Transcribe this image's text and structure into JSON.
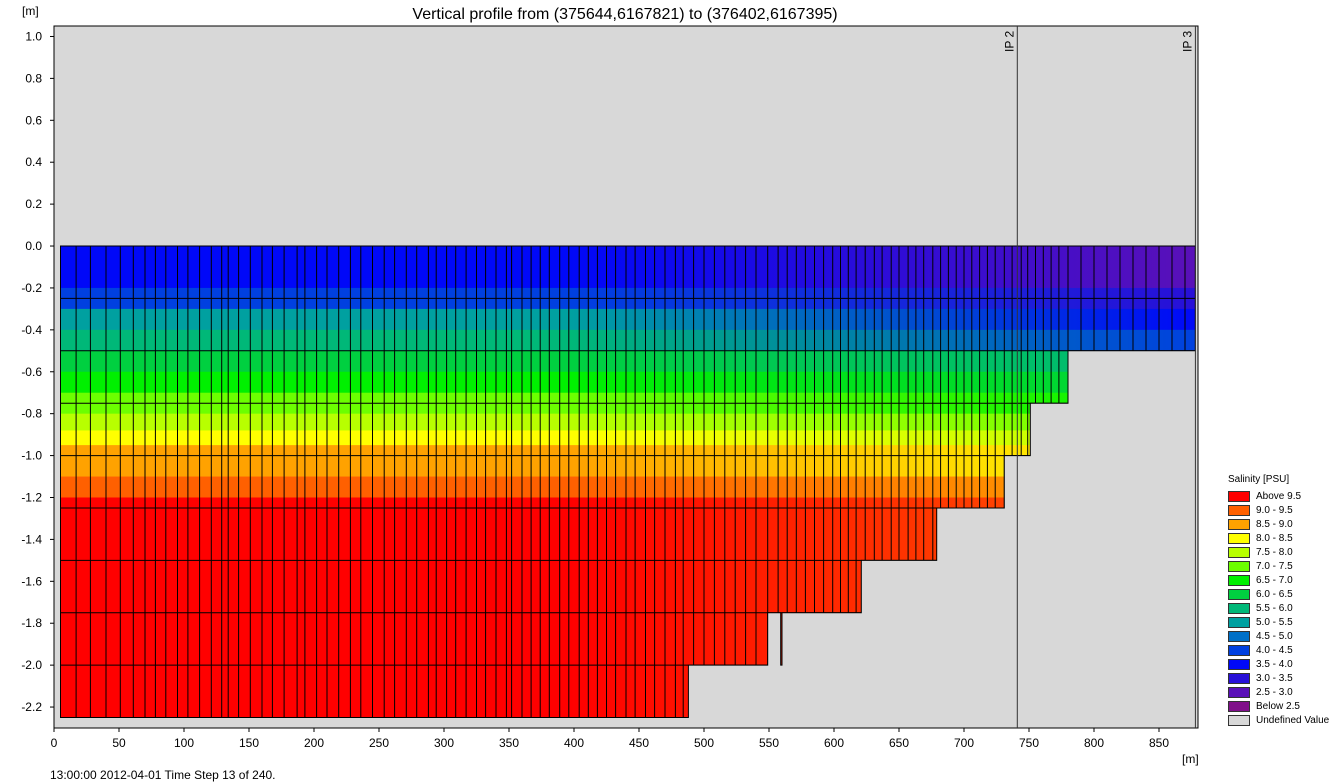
{
  "chart_data": {
    "type": "heatmap",
    "title": "Vertical profile from (375644,6167821) to (376402,6167395)",
    "ylabel": "[m]",
    "xlabel": "[m]",
    "xlim": [
      0,
      880
    ],
    "ylim": [
      -2.3,
      1.05
    ],
    "x_ticks": [
      0,
      50,
      100,
      150,
      200,
      250,
      300,
      350,
      400,
      450,
      500,
      550,
      600,
      650,
      700,
      750,
      800,
      850
    ],
    "y_ticks": [
      1.0,
      0.8,
      0.6,
      0.4,
      0.2,
      0.0,
      -0.2,
      -0.4,
      -0.6,
      -0.8,
      -1.0,
      -1.2,
      -1.4,
      -1.6,
      -1.8,
      -2.0,
      -2.2
    ],
    "water_surface": 0.0,
    "bottom_profile": [
      {
        "x_from": 5,
        "x_to": 488,
        "depth": -2.25
      },
      {
        "x_from": 488,
        "x_to": 549,
        "depth": -2.0
      },
      {
        "x_from": 549,
        "x_to": 559,
        "depth": -1.75
      },
      {
        "x_from": 559,
        "x_to": 560,
        "depth": -2.0
      },
      {
        "x_from": 560,
        "x_to": 621,
        "depth": -1.75
      },
      {
        "x_from": 621,
        "x_to": 679,
        "depth": -1.5
      },
      {
        "x_from": 679,
        "x_to": 731,
        "depth": -1.25
      },
      {
        "x_from": 731,
        "x_to": 751,
        "depth": -1.0
      },
      {
        "x_from": 751,
        "x_to": 780,
        "depth": -0.75
      },
      {
        "x_from": 780,
        "x_to": 878,
        "depth": -0.5
      }
    ],
    "salinity_layers": [
      {
        "top": 0.0,
        "bottom": -0.2,
        "left_band": "3.5 - 4.0",
        "right_band": "2.5 - 3.0"
      },
      {
        "top": -0.2,
        "bottom": -0.3,
        "left_band": "4.0 - 4.5",
        "right_band": "3.0 - 3.5"
      },
      {
        "top": -0.3,
        "bottom": -0.4,
        "left_band": "5.0 - 5.5",
        "right_band": "3.5 - 4.0"
      },
      {
        "top": -0.4,
        "bottom": -0.5,
        "left_band": "5.5 - 6.0",
        "right_band": "4.0 - 4.5"
      },
      {
        "top": -0.5,
        "bottom": -0.6,
        "left_band": "6.0 - 6.5",
        "right_band": "5.5 - 6.0"
      },
      {
        "top": -0.6,
        "bottom": -0.7,
        "left_band": "6.5 - 7.0",
        "right_band": "6.0 - 6.5"
      },
      {
        "top": -0.7,
        "bottom": -0.8,
        "left_band": "7.0 - 7.5",
        "right_band": "6.5 - 7.0"
      },
      {
        "top": -0.8,
        "bottom": -0.88,
        "left_band": "7.5 - 8.0",
        "right_band": "7.0 - 7.5"
      },
      {
        "top": -0.88,
        "bottom": -0.95,
        "left_band": "8.0 - 8.5",
        "right_band": "7.5 - 8.0"
      },
      {
        "top": -0.95,
        "bottom": -1.1,
        "left_band": "8.5 - 9.0",
        "right_band": "8.0 - 8.5"
      },
      {
        "top": -1.1,
        "bottom": -1.2,
        "left_band": "9.0 - 9.5",
        "right_band": "8.5 - 9.0"
      },
      {
        "top": -1.2,
        "bottom": -2.25,
        "left_band": "Above 9.5",
        "right_band": "9.0 - 9.5"
      }
    ],
    "horizontal_grid_depths": [
      -0.25,
      -0.5,
      -0.75,
      -1.0,
      -1.25,
      -1.5,
      -1.75,
      -2.0
    ],
    "cross_section_x_lines": [
      5,
      17,
      28,
      40,
      51,
      61,
      70,
      78,
      86,
      95,
      103,
      112,
      121,
      129,
      134,
      142,
      151,
      160,
      168,
      177,
      187,
      193,
      202,
      210,
      219,
      228,
      236,
      245,
      254,
      262,
      271,
      279,
      288,
      294,
      302,
      309,
      317,
      325,
      332,
      340,
      348,
      352,
      360,
      367,
      374,
      381,
      389,
      396,
      404,
      411,
      418,
      425,
      432,
      440,
      447,
      455,
      462,
      470,
      478,
      484,
      492,
      500,
      508,
      516,
      524,
      532,
      540,
      549,
      557,
      564,
      571,
      578,
      585,
      592,
      599,
      605,
      611,
      617,
      624,
      631,
      637,
      644,
      650,
      657,
      663,
      669,
      676,
      682,
      688,
      694,
      700,
      706,
      712,
      718,
      724,
      731,
      737,
      744,
      749,
      755,
      761,
      767,
      773,
      780,
      790,
      800,
      810,
      820,
      830,
      840,
      850,
      860,
      870,
      878
    ],
    "observation_points": [
      {
        "label": "IP 2",
        "x": 741
      },
      {
        "label": "IP 3",
        "x": 878
      }
    ],
    "legend": {
      "title": "Salinity [PSU]",
      "placement": "right",
      "items": [
        {
          "label": "Above 9.5",
          "color": "#ff0000"
        },
        {
          "label": "9.0 - 9.5",
          "color": "#ff6000"
        },
        {
          "label": "8.5 - 9.0",
          "color": "#ffa200"
        },
        {
          "label": "8.0 - 8.5",
          "color": "#ffff00"
        },
        {
          "label": "7.5 - 8.0",
          "color": "#b8ff00"
        },
        {
          "label": "7.0 - 7.5",
          "color": "#6cff00"
        },
        {
          "label": "6.5 - 7.0",
          "color": "#00f000"
        },
        {
          "label": "6.0 - 6.5",
          "color": "#00d040"
        },
        {
          "label": "5.5 - 6.0",
          "color": "#00b878"
        },
        {
          "label": "5.0 - 5.5",
          "color": "#00a0a0"
        },
        {
          "label": "4.5 - 5.0",
          "color": "#0070c8"
        },
        {
          "label": "4.0 - 4.5",
          "color": "#0040e0"
        },
        {
          "label": "3.5 - 4.0",
          "color": "#0008f8"
        },
        {
          "label": "3.0 - 3.5",
          "color": "#2810d8"
        },
        {
          "label": "2.5 - 3.0",
          "color": "#5a10b8"
        },
        {
          "label": "Below 2.5",
          "color": "#80108a"
        },
        {
          "label": "Undefined Value",
          "color": "#d8d8d8"
        }
      ]
    }
  },
  "footer": "13:00:00 2012-04-01  Time Step 13 of 240."
}
